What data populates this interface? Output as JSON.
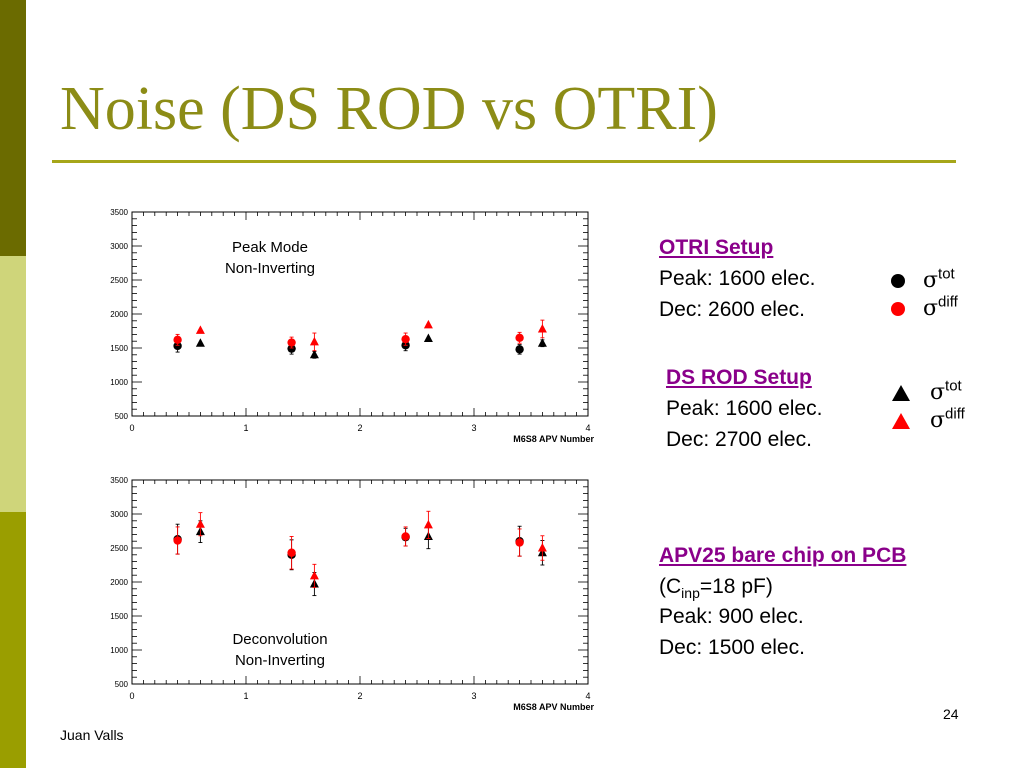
{
  "slide": {
    "title": "Noise (DS ROD vs OTRI)",
    "author": "Juan Valls",
    "page_number": "24"
  },
  "otri": {
    "heading": "OTRI Setup",
    "peak": "Peak: 1600 elec.",
    "dec": "Dec: 2600 elec.",
    "legend": [
      {
        "symbol": "circle",
        "color": "#000000",
        "sigma": "σ",
        "sup": "tot"
      },
      {
        "symbol": "circle",
        "color": "#ff0000",
        "sigma": "σ",
        "sup": "diff"
      }
    ]
  },
  "dsrod": {
    "heading": "DS ROD Setup",
    "peak": "Peak: 1600 elec.",
    "dec": "Dec: 2700 elec.",
    "legend": [
      {
        "symbol": "triangle",
        "color": "#000000",
        "sigma": "σ",
        "sup": "tot"
      },
      {
        "symbol": "triangle",
        "color": "#ff0000",
        "sigma": "σ",
        "sup": "diff"
      }
    ]
  },
  "apv": {
    "heading": "APV25 bare chip on PCB",
    "cinp_pre": "(C",
    "cinp_sub": "inp",
    "cinp_post": "=18 pF)",
    "peak": "Peak: 900 elec.",
    "dec": "Dec: 1500 elec."
  },
  "chart_data": [
    {
      "type": "scatter",
      "annotation": [
        "Peak Mode",
        "Non-Inverting"
      ],
      "xlabel": "M6S8 APV Number",
      "ylabel": "",
      "xlim": [
        0,
        4
      ],
      "ylim": [
        500,
        3500
      ],
      "xticks": [
        "0",
        "1",
        "2",
        "3",
        "4"
      ],
      "yticks": [
        "500",
        "1000",
        "1500",
        "2000",
        "2500",
        "3000",
        "3500"
      ],
      "series": [
        {
          "symbol": "circle",
          "color": "#000000",
          "x": [
            0.4,
            1.4,
            2.4,
            3.4
          ],
          "y": [
            1530,
            1490,
            1540,
            1480
          ],
          "err": [
            90,
            80,
            80,
            70
          ]
        },
        {
          "symbol": "circle",
          "color": "#ff0000",
          "x": [
            0.4,
            1.4,
            2.4,
            3.4
          ],
          "y": [
            1620,
            1580,
            1630,
            1650
          ],
          "err": [
            80,
            80,
            90,
            80
          ]
        },
        {
          "symbol": "triangle",
          "color": "#000000",
          "x": [
            0.6,
            1.6,
            2.6,
            3.6
          ],
          "y": [
            1570,
            1400,
            1640,
            1570
          ],
          "err": [
            0,
            50,
            0,
            50
          ]
        },
        {
          "symbol": "triangle",
          "color": "#ff0000",
          "x": [
            0.6,
            1.6,
            2.6,
            3.6
          ],
          "y": [
            1760,
            1590,
            1840,
            1780
          ],
          "err": [
            0,
            130,
            0,
            130
          ]
        }
      ]
    },
    {
      "type": "scatter",
      "annotation": [
        "Deconvolution",
        "Non-Inverting"
      ],
      "xlabel": "M6S8 APV Number",
      "ylabel": "",
      "xlim": [
        0,
        4
      ],
      "ylim": [
        500,
        3500
      ],
      "xticks": [
        "0",
        "1",
        "2",
        "3",
        "4"
      ],
      "yticks": [
        "500",
        "1000",
        "1500",
        "2000",
        "2500",
        "3000",
        "3500"
      ],
      "series": [
        {
          "symbol": "circle",
          "color": "#000000",
          "x": [
            0.4,
            1.4,
            2.4,
            3.4
          ],
          "y": [
            2630,
            2400,
            2660,
            2600
          ],
          "err": [
            220,
            220,
            130,
            220
          ]
        },
        {
          "symbol": "circle",
          "color": "#ff0000",
          "x": [
            0.4,
            1.4,
            2.4,
            3.4
          ],
          "y": [
            2610,
            2430,
            2670,
            2580
          ],
          "err": [
            200,
            240,
            140,
            200
          ]
        },
        {
          "symbol": "triangle",
          "color": "#000000",
          "x": [
            0.6,
            1.6,
            2.6,
            3.6
          ],
          "y": [
            2740,
            1970,
            2670,
            2430
          ],
          "err": [
            160,
            170,
            180,
            180
          ]
        },
        {
          "symbol": "triangle",
          "color": "#ff0000",
          "x": [
            0.6,
            1.6,
            2.6,
            3.6
          ],
          "y": [
            2850,
            2090,
            2840,
            2500
          ],
          "err": [
            170,
            170,
            200,
            180
          ]
        }
      ]
    }
  ]
}
